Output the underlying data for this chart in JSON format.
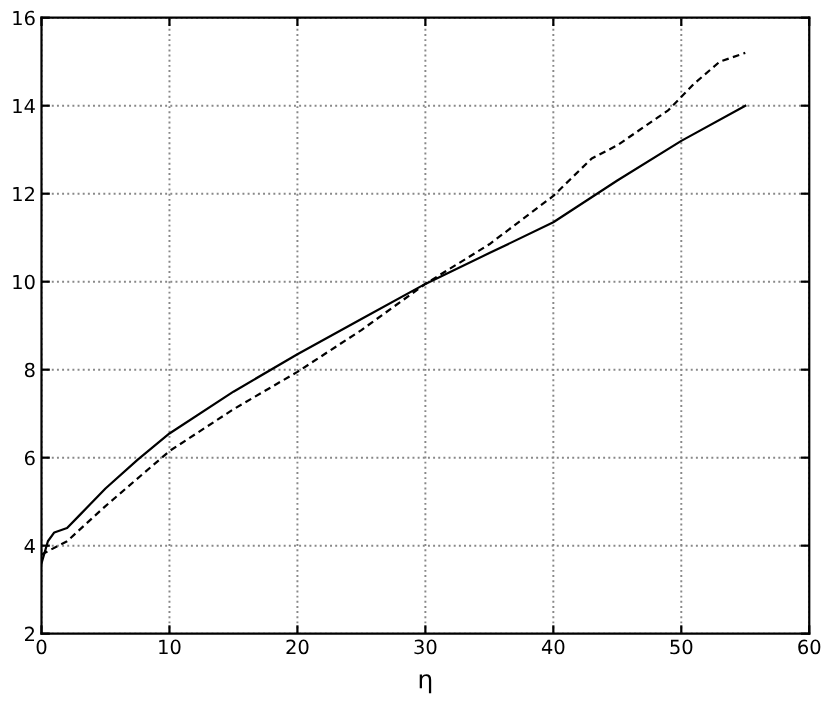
{
  "chart_data": {
    "type": "line",
    "xlabel": "η",
    "xlim": [
      0,
      60
    ],
    "xticks": [
      0,
      10,
      20,
      30,
      40,
      50,
      60
    ],
    "ylim": [
      2,
      16
    ],
    "yticks": [
      2,
      4,
      6,
      8,
      10,
      12,
      14,
      16
    ],
    "grid": true,
    "series": [
      {
        "color": "#000000",
        "line_style": "solid",
        "x": [
          0,
          0.5,
          1,
          2,
          3,
          5,
          7.5,
          10,
          15,
          20,
          25,
          30,
          35,
          40,
          45,
          50,
          55
        ],
        "values": [
          3.6,
          4.1,
          4.3,
          4.4,
          4.7,
          5.3,
          5.95,
          6.55,
          7.5,
          8.35,
          9.15,
          9.95,
          10.65,
          11.35,
          12.3,
          13.2,
          14.0
        ]
      },
      {
        "color": "#000000",
        "line_style": "dashed",
        "x": [
          0,
          2,
          5,
          10,
          15,
          20,
          25,
          30,
          35,
          40,
          43,
          45,
          47,
          49,
          51,
          53,
          55
        ],
        "values": [
          3.8,
          4.1,
          4.9,
          6.15,
          7.1,
          7.95,
          8.9,
          9.95,
          10.85,
          11.95,
          12.8,
          13.1,
          13.5,
          13.9,
          14.5,
          15.0,
          15.2
        ]
      }
    ]
  }
}
